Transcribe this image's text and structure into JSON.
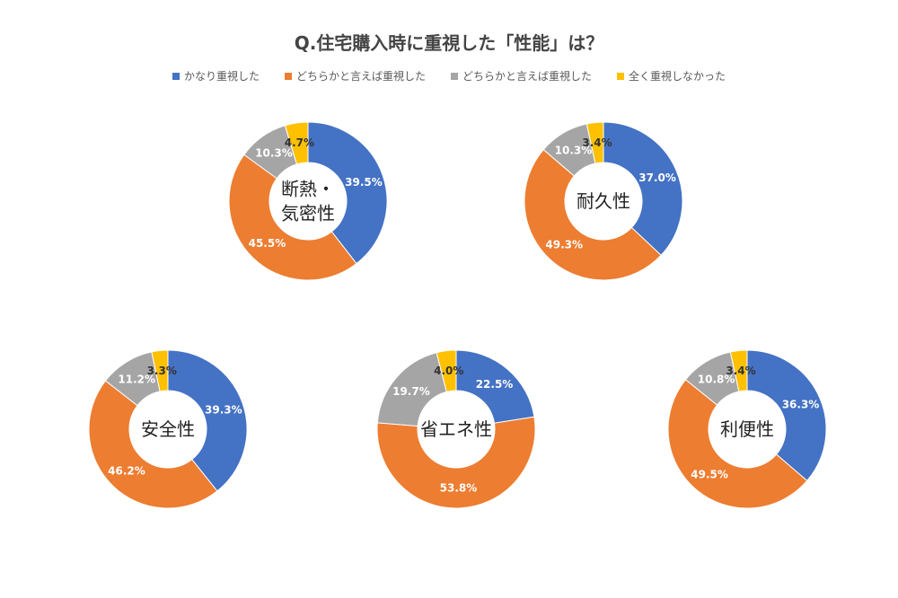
{
  "chart_data": {
    "type": "pie",
    "variant": "donut",
    "title": "Q.住宅購入時に重視した「性能」は？",
    "legend_position": "top",
    "series_names": [
      "かなり重視した",
      "どちらかと言えば重視した",
      "どちらかと言えば重視した",
      "全く重視しなかった"
    ],
    "colors": [
      "#4472c4",
      "#ed7d31",
      "#a5a5a5",
      "#ffc000"
    ],
    "label_colors": [
      "#ffffff",
      "#ffffff",
      "#ffffff",
      "#333333"
    ],
    "charts": [
      {
        "label_lines": [
          "断熱・",
          "気密性"
        ],
        "values": [
          39.5,
          45.5,
          10.3,
          4.7
        ],
        "labels": [
          "39.5%",
          "45.5%",
          "10.3%",
          "4.7%"
        ]
      },
      {
        "label_lines": [
          "耐久性"
        ],
        "values": [
          37.0,
          49.3,
          10.3,
          3.4
        ],
        "labels": [
          "37.0%",
          "49.3%",
          "10.3%",
          "3.4%"
        ]
      },
      {
        "label_lines": [
          "安全性"
        ],
        "values": [
          39.3,
          46.2,
          11.2,
          3.3
        ],
        "labels": [
          "39.3%",
          "46.2%",
          "11.2%",
          "3.3%"
        ]
      },
      {
        "label_lines": [
          "省エネ性"
        ],
        "values": [
          22.5,
          53.8,
          19.7,
          4.0
        ],
        "labels": [
          "22.5%",
          "53.8%",
          "19.7%",
          "4.0%"
        ]
      },
      {
        "label_lines": [
          "利便性"
        ],
        "values": [
          36.3,
          49.5,
          10.8,
          3.4
        ],
        "labels": [
          "36.3%",
          "49.5%",
          "10.8%",
          "3.4%"
        ]
      }
    ]
  }
}
